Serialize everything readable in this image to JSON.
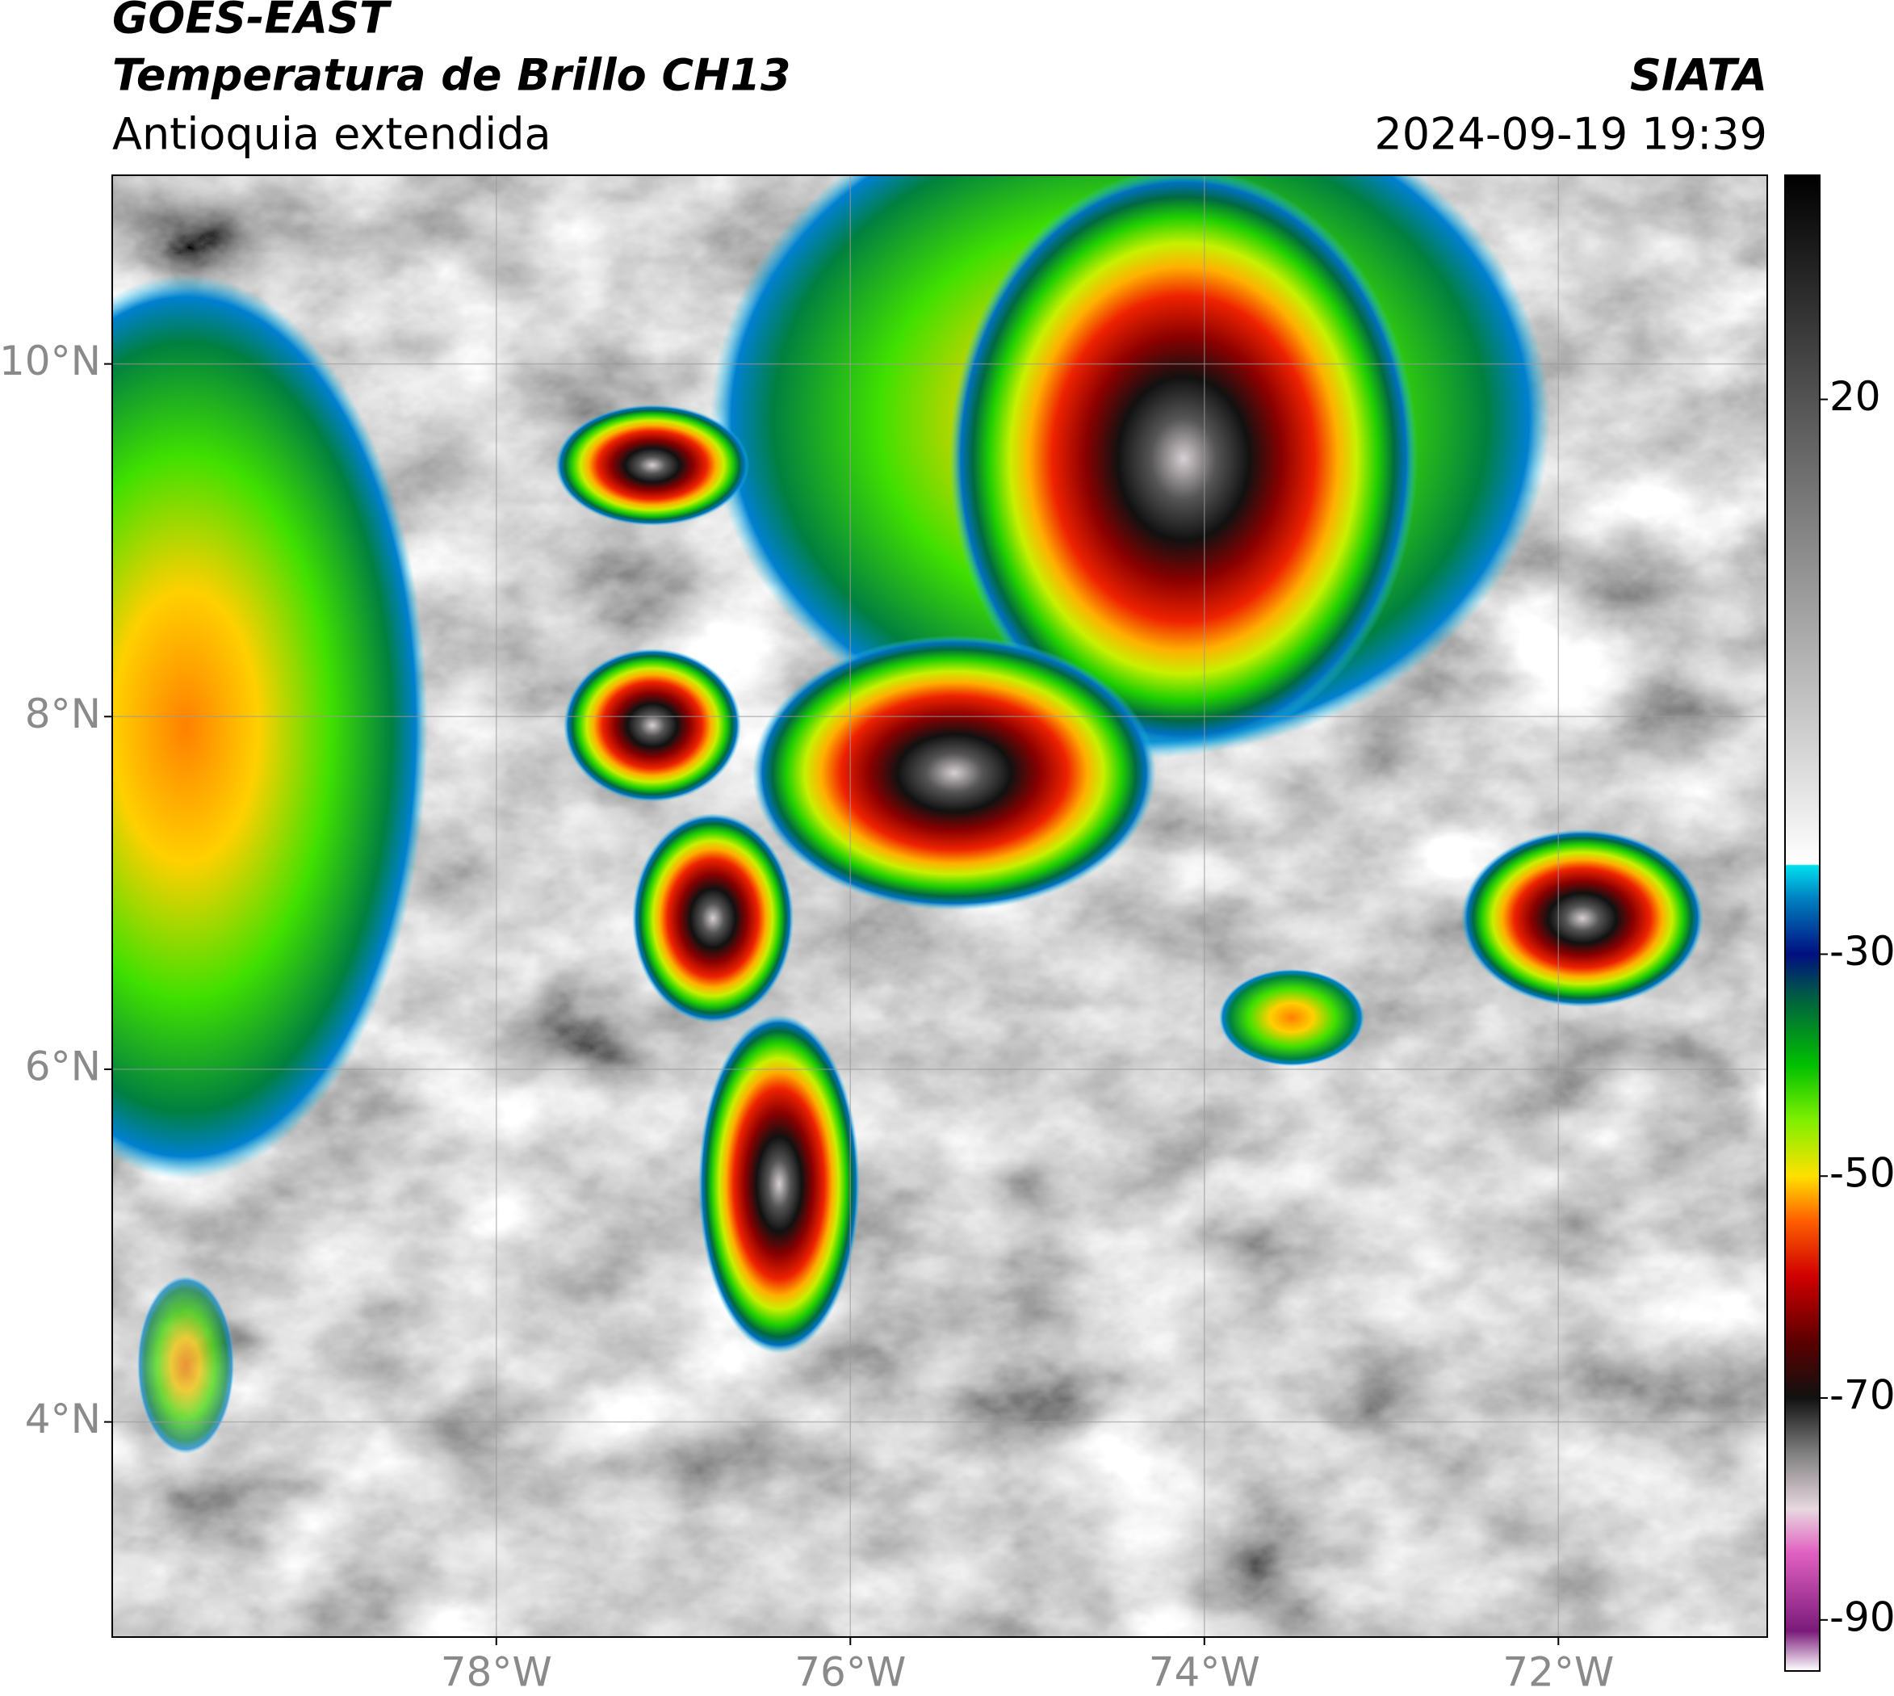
{
  "header": {
    "title": "GOES-EAST",
    "subtitle": "Temperatura de Brillo CH13",
    "region": "Antioquia extendida",
    "source": "SIATA",
    "datetime": "2024-09-19 19:39"
  },
  "map": {
    "xlim": [
      -80.17,
      -70.82
    ],
    "ylim": [
      2.78,
      11.07
    ],
    "xticks": [
      {
        "value": -78,
        "label": "78°W"
      },
      {
        "value": -76,
        "label": "76°W"
      },
      {
        "value": -74,
        "label": "74°W"
      },
      {
        "value": -72,
        "label": "72°W"
      }
    ],
    "yticks": [
      {
        "value": 4,
        "label": "4°N"
      },
      {
        "value": 6,
        "label": "6°N"
      },
      {
        "value": 8,
        "label": "8°N"
      },
      {
        "value": 10,
        "label": "10°N"
      }
    ],
    "grid": true
  },
  "colorbar": {
    "lim": [
      -94.6,
      40.2
    ],
    "ticks": [
      -90,
      -70,
      -50,
      -30,
      20
    ],
    "stops": [
      {
        "value": -94.6,
        "color": "#ffffff"
      },
      {
        "value": -91,
        "color": "#7a1a7a"
      },
      {
        "value": -84,
        "color": "#e060c0"
      },
      {
        "value": -80,
        "color": "#e8d8e0"
      },
      {
        "value": -75,
        "color": "#808080"
      },
      {
        "value": -70,
        "color": "#111111"
      },
      {
        "value": -65,
        "color": "#5a0000"
      },
      {
        "value": -59,
        "color": "#d00000"
      },
      {
        "value": -54,
        "color": "#ff6000"
      },
      {
        "value": -50,
        "color": "#ffe000"
      },
      {
        "value": -45,
        "color": "#80f000"
      },
      {
        "value": -40,
        "color": "#00c000"
      },
      {
        "value": -34,
        "color": "#006040"
      },
      {
        "value": -30,
        "color": "#001080"
      },
      {
        "value": -25,
        "color": "#0080c0"
      },
      {
        "value": -22,
        "color": "#00e0f0"
      },
      {
        "value": -21.9,
        "color": "#ffffff"
      },
      {
        "value": 40.2,
        "color": "#000000"
      }
    ]
  }
}
